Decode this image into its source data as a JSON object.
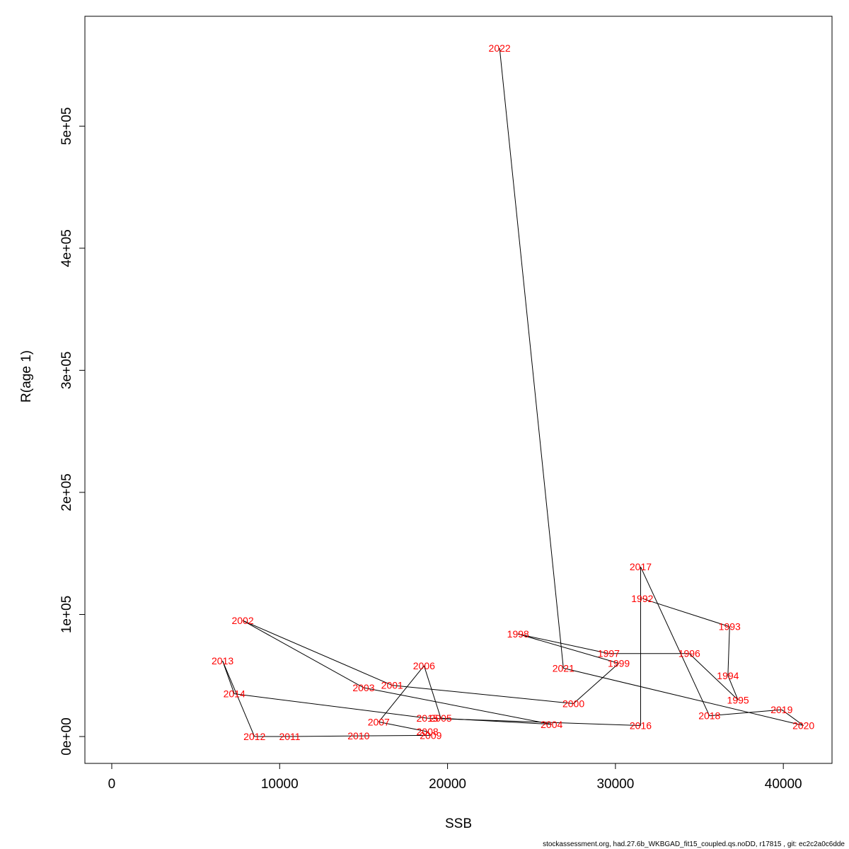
{
  "chart_data": {
    "type": "line",
    "xlabel": "SSB",
    "ylabel": "R(age 1)",
    "xlim": [
      -1600,
      42900
    ],
    "ylim": [
      -22000,
      590000
    ],
    "x_ticks": [
      0,
      10000,
      20000,
      30000,
      40000
    ],
    "x_tick_labels": [
      "0",
      "10000",
      "20000",
      "30000",
      "40000"
    ],
    "y_ticks": [
      0,
      100000,
      200000,
      300000,
      400000,
      500000
    ],
    "y_tick_labels": [
      "0e+00",
      "1e+05",
      "2e+05",
      "3e+05",
      "4e+05",
      "5e+05"
    ],
    "grid": false,
    "line_color": "#000000",
    "label_color": "#ff0000",
    "points": [
      {
        "year": "1992",
        "x": 31600,
        "y": 113000
      },
      {
        "year": "1993",
        "x": 36800,
        "y": 90000
      },
      {
        "year": "1994",
        "x": 36700,
        "y": 50000
      },
      {
        "year": "1995",
        "x": 37300,
        "y": 30000
      },
      {
        "year": "1996",
        "x": 34400,
        "y": 68000
      },
      {
        "year": "1997",
        "x": 29600,
        "y": 68000
      },
      {
        "year": "1998",
        "x": 24200,
        "y": 84000
      },
      {
        "year": "1999",
        "x": 30200,
        "y": 60000
      },
      {
        "year": "2000",
        "x": 27500,
        "y": 27000
      },
      {
        "year": "2001",
        "x": 16700,
        "y": 42000
      },
      {
        "year": "2002",
        "x": 7800,
        "y": 95000
      },
      {
        "year": "2003",
        "x": 15000,
        "y": 40000
      },
      {
        "year": "2004",
        "x": 26200,
        "y": 10000
      },
      {
        "year": "2005",
        "x": 19600,
        "y": 15000
      },
      {
        "year": "2006",
        "x": 18600,
        "y": 58000
      },
      {
        "year": "2007",
        "x": 15900,
        "y": 12000
      },
      {
        "year": "2008",
        "x": 18800,
        "y": 4000
      },
      {
        "year": "2009",
        "x": 19000,
        "y": 1000
      },
      {
        "year": "2010",
        "x": 14700,
        "y": 500
      },
      {
        "year": "2011",
        "x": 10600,
        "y": 0
      },
      {
        "year": "2012",
        "x": 8500,
        "y": 0
      },
      {
        "year": "2013",
        "x": 6600,
        "y": 62000
      },
      {
        "year": "2014",
        "x": 7300,
        "y": 35000
      },
      {
        "year": "2015",
        "x": 18800,
        "y": 15000
      },
      {
        "year": "2016",
        "x": 31500,
        "y": 9000
      },
      {
        "year": "2017",
        "x": 31500,
        "y": 139000
      },
      {
        "year": "2018",
        "x": 35600,
        "y": 17000
      },
      {
        "year": "2019",
        "x": 39900,
        "y": 22000
      },
      {
        "year": "2020",
        "x": 41200,
        "y": 9000
      },
      {
        "year": "2021",
        "x": 26900,
        "y": 56000
      },
      {
        "year": "2022",
        "x": 23100,
        "y": 564000
      }
    ],
    "footer": "stockassessment.org, had.27.6b_WKBGAD_fit15_coupled.qs.noDD, r17815 , git: ec2c2a0c6dde"
  }
}
